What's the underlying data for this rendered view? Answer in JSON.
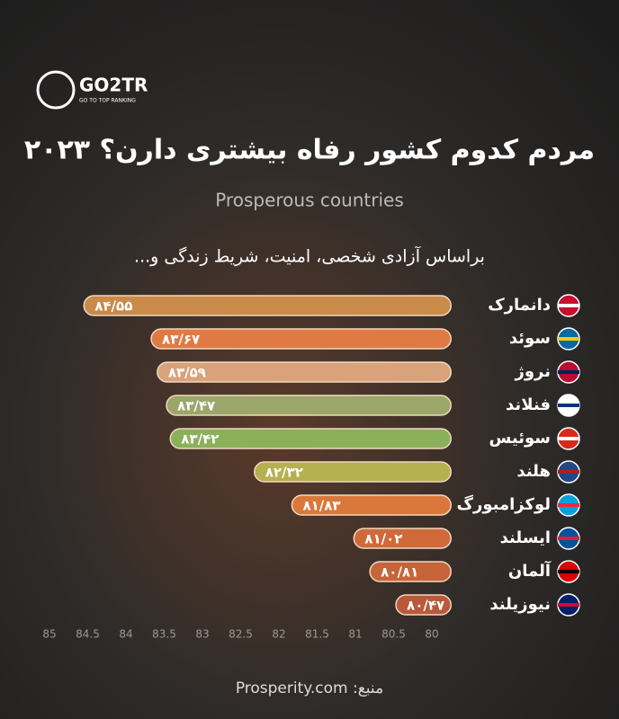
{
  "logo": {
    "name": "GO2TR",
    "tagline": "GO TO TOP RANKING"
  },
  "chart_data": {
    "type": "hbar",
    "title": "مردم کدوم کشور رفاه بیشتری دارن؟ ۲۰۲۳",
    "subtitle": "Prosperous countries",
    "note": "براساس آزادی شخصی، امنیت، شریط زندگی و...",
    "categories": [
      "دانمارک",
      "سوئد",
      "نروژ",
      "فنلاند",
      "سوئیس",
      "هلند",
      "لوکزامبورگ",
      "ایسلند",
      "آلمان",
      "نیوزیلند"
    ],
    "values": [
      84.55,
      83.67,
      83.59,
      83.47,
      83.42,
      82.32,
      81.83,
      81.02,
      80.81,
      80.47
    ],
    "value_labels": [
      "۸۴/۵۵",
      "۸۳/۶۷",
      "۸۳/۵۹",
      "۸۳/۴۷",
      "۸۳/۴۲",
      "۸۲/۳۲",
      "۸۱/۸۳",
      "۸۱/۰۲",
      "۸۰/۸۱",
      "۸۰/۴۷"
    ],
    "colors": [
      "#c98a4a",
      "#e07a45",
      "#d9a27a",
      "#9aa66a",
      "#8bb05a",
      "#b5b050",
      "#d9783a",
      "#d06a3a",
      "#c8643a",
      "#b85a3a"
    ],
    "xlim": [
      85,
      79.75
    ],
    "xticks": [
      85,
      84.5,
      84,
      83.5,
      83,
      82.5,
      82,
      81.5,
      81,
      80.5,
      80
    ],
    "source": "منبع: Prosperity.com"
  }
}
